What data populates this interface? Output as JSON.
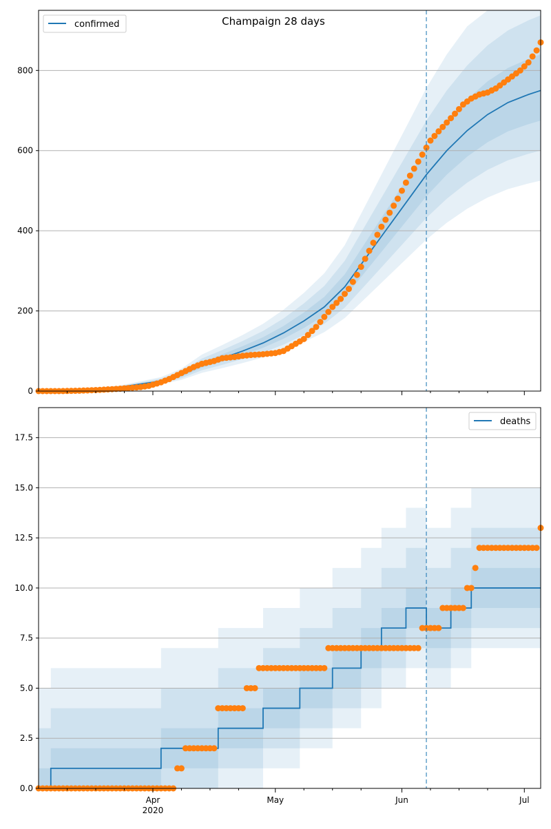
{
  "chart_data": [
    {
      "type": "line",
      "title": "Champaign 28 days",
      "legend": [
        "confirmed"
      ],
      "legend_position": "top-left",
      "grid": "horizontal",
      "ylim": [
        0,
        950
      ],
      "yticks": [
        0,
        200,
        400,
        600,
        800
      ],
      "xlim_days": [
        0,
        123
      ],
      "xticks": [
        {
          "day": 28,
          "label": "Apr",
          "sub": "2020"
        },
        {
          "day": 58,
          "label": "May",
          "sub": ""
        },
        {
          "day": 89,
          "label": "Jun",
          "sub": ""
        },
        {
          "day": 119,
          "label": "Jul",
          "sub": ""
        }
      ],
      "minor_xticks": [
        7,
        14,
        21,
        35,
        42,
        49,
        65,
        72,
        79,
        96,
        103,
        110
      ],
      "xaxis_tick_labels_visible": false,
      "forecast_start_day": 95,
      "median_line": [
        [
          0,
          0
        ],
        [
          10,
          3
        ],
        [
          20,
          10
        ],
        [
          30,
          25
        ],
        [
          35,
          40
        ],
        [
          40,
          65
        ],
        [
          45,
          82
        ],
        [
          50,
          100
        ],
        [
          55,
          120
        ],
        [
          60,
          145
        ],
        [
          65,
          175
        ],
        [
          70,
          210
        ],
        [
          75,
          260
        ],
        [
          80,
          330
        ],
        [
          85,
          400
        ],
        [
          90,
          470
        ],
        [
          95,
          540
        ],
        [
          100,
          600
        ],
        [
          105,
          650
        ],
        [
          110,
          690
        ],
        [
          115,
          720
        ],
        [
          120,
          740
        ],
        [
          123,
          750
        ]
      ],
      "bands_offset": [
        {
          "lo": 0.9,
          "hi": 1.12
        },
        {
          "lo": 0.8,
          "hi": 1.25
        },
        {
          "lo": 0.7,
          "hi": 1.4
        }
      ],
      "observed": [
        [
          0,
          0
        ],
        [
          5,
          0
        ],
        [
          10,
          1
        ],
        [
          15,
          3
        ],
        [
          20,
          6
        ],
        [
          25,
          10
        ],
        [
          27,
          13
        ],
        [
          30,
          22
        ],
        [
          32,
          30
        ],
        [
          35,
          45
        ],
        [
          38,
          60
        ],
        [
          40,
          68
        ],
        [
          43,
          75
        ],
        [
          45,
          82
        ],
        [
          48,
          85
        ],
        [
          50,
          88
        ],
        [
          52,
          90
        ],
        [
          55,
          92
        ],
        [
          58,
          95
        ],
        [
          60,
          100
        ],
        [
          62,
          112
        ],
        [
          65,
          130
        ],
        [
          68,
          160
        ],
        [
          70,
          185
        ],
        [
          72,
          210
        ],
        [
          74,
          230
        ],
        [
          76,
          255
        ],
        [
          78,
          290
        ],
        [
          80,
          330
        ],
        [
          82,
          370
        ],
        [
          84,
          410
        ],
        [
          86,
          445
        ],
        [
          88,
          480
        ],
        [
          90,
          520
        ],
        [
          92,
          555
        ],
        [
          94,
          590
        ],
        [
          96,
          625
        ],
        [
          98,
          648
        ],
        [
          100,
          670
        ],
        [
          102,
          692
        ],
        [
          104,
          715
        ],
        [
          106,
          730
        ],
        [
          108,
          740
        ],
        [
          110,
          745
        ],
        [
          112,
          755
        ],
        [
          114,
          770
        ],
        [
          116,
          785
        ],
        [
          118,
          800
        ],
        [
          120,
          820
        ],
        [
          122,
          850
        ],
        [
          123,
          870
        ]
      ]
    },
    {
      "type": "line",
      "title": "",
      "legend": [
        "deaths"
      ],
      "legend_position": "top-right",
      "grid": "horizontal",
      "ylim": [
        0,
        19
      ],
      "yticks": [
        0.0,
        2.5,
        5.0,
        7.5,
        10.0,
        12.5,
        15.0,
        17.5
      ],
      "xlim_days": [
        0,
        123
      ],
      "xticks": [
        {
          "day": 28,
          "label": "Apr",
          "sub": "2020"
        },
        {
          "day": 58,
          "label": "May",
          "sub": ""
        },
        {
          "day": 89,
          "label": "Jun",
          "sub": ""
        },
        {
          "day": 119,
          "label": "Jul",
          "sub": ""
        }
      ],
      "minor_xticks": [
        7,
        14,
        21,
        35,
        42,
        49,
        65,
        72,
        79,
        96,
        103,
        110
      ],
      "xaxis_tick_labels_visible": true,
      "forecast_start_day": 95,
      "median_line": [
        [
          0,
          0
        ],
        [
          3,
          0
        ],
        [
          3,
          1
        ],
        [
          30,
          1
        ],
        [
          30,
          2
        ],
        [
          44,
          2
        ],
        [
          44,
          3
        ],
        [
          55,
          3
        ],
        [
          55,
          4
        ],
        [
          64,
          4
        ],
        [
          64,
          5
        ],
        [
          72,
          5
        ],
        [
          72,
          6
        ],
        [
          79,
          6
        ],
        [
          79,
          7
        ],
        [
          84,
          7
        ],
        [
          84,
          8
        ],
        [
          90,
          8
        ],
        [
          90,
          9
        ],
        [
          95,
          9
        ],
        [
          95,
          8
        ],
        [
          101,
          8
        ],
        [
          101,
          9
        ],
        [
          106,
          9
        ],
        [
          106,
          10
        ],
        [
          112,
          10
        ],
        [
          112,
          10
        ],
        [
          123,
          10
        ]
      ],
      "bands_abs": [
        {
          "lo_off": -1,
          "hi_off": 1
        },
        {
          "lo_off": -2,
          "hi_off": 3
        },
        {
          "lo_off": -3,
          "hi_off": 5
        }
      ],
      "observed": [
        [
          0,
          0
        ],
        [
          32,
          0
        ],
        [
          34,
          1
        ],
        [
          36,
          2
        ],
        [
          43,
          2
        ],
        [
          44,
          4
        ],
        [
          49,
          4
        ],
        [
          51,
          5
        ],
        [
          53,
          5
        ],
        [
          54,
          6
        ],
        [
          69,
          6
        ],
        [
          71,
          7
        ],
        [
          93,
          7
        ],
        [
          94,
          8
        ],
        [
          98,
          8
        ],
        [
          99,
          9
        ],
        [
          104,
          9
        ],
        [
          105,
          10
        ],
        [
          107,
          11
        ],
        [
          108,
          12
        ],
        [
          122,
          12
        ],
        [
          123,
          13
        ]
      ]
    }
  ],
  "colors": {
    "line": "#1f77b4",
    "observed": "#ff7f0e",
    "band": "#1f77b4",
    "vline": "#1f77b4"
  }
}
